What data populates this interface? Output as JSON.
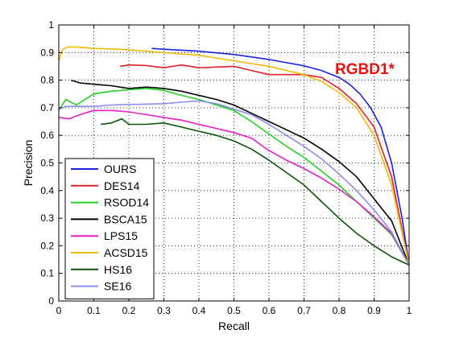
{
  "chart_data": {
    "type": "line",
    "title": "",
    "annotation": "RGBD1*",
    "xlabel": "Recall",
    "ylabel": "Precision",
    "xlim": [
      0,
      1
    ],
    "ylim": [
      0,
      1
    ],
    "xticks": [
      "0",
      "0.1",
      "0.2",
      "0.3",
      "0.4",
      "0.5",
      "0.6",
      "0.7",
      "0.8",
      "0.9",
      "1"
    ],
    "yticks": [
      "0",
      "0.1",
      "0.2",
      "0.3",
      "0.4",
      "0.5",
      "0.6",
      "0.7",
      "0.8",
      "0.9",
      "1"
    ],
    "grid": true,
    "grid_style": "dotted",
    "legend_position": "bottom-left",
    "colors": {
      "axis": "#000000",
      "grid": "#000000",
      "annotation": "#e8120c",
      "background": "#ffffff"
    },
    "series": [
      {
        "name": "OURS",
        "color": "#1a22dc",
        "x": [
          0.265,
          0.3,
          0.4,
          0.5,
          0.6,
          0.7,
          0.75,
          0.8,
          0.83,
          0.86,
          0.89,
          0.92,
          0.95,
          0.98,
          1.0
        ],
        "y": [
          0.915,
          0.912,
          0.905,
          0.893,
          0.875,
          0.852,
          0.835,
          0.81,
          0.785,
          0.75,
          0.7,
          0.63,
          0.5,
          0.3,
          0.13
        ]
      },
      {
        "name": "DES14",
        "color": "#e0212b",
        "x": [
          0.175,
          0.2,
          0.25,
          0.3,
          0.35,
          0.4,
          0.5,
          0.55,
          0.6,
          0.7,
          0.75,
          0.8,
          0.85,
          0.9,
          0.95,
          1.0
        ],
        "y": [
          0.85,
          0.855,
          0.853,
          0.845,
          0.855,
          0.845,
          0.85,
          0.835,
          0.82,
          0.82,
          0.81,
          0.77,
          0.715,
          0.63,
          0.45,
          0.13
        ]
      },
      {
        "name": "RSOD14",
        "color": "#22d222",
        "x": [
          0.0,
          0.02,
          0.05,
          0.1,
          0.15,
          0.2,
          0.25,
          0.3,
          0.35,
          0.4,
          0.45,
          0.5,
          0.55,
          0.6,
          0.65,
          0.7,
          0.75,
          0.8,
          0.85,
          0.9,
          0.95,
          1.0
        ],
        "y": [
          0.69,
          0.73,
          0.71,
          0.75,
          0.76,
          0.765,
          0.77,
          0.763,
          0.745,
          0.73,
          0.71,
          0.69,
          0.65,
          0.605,
          0.56,
          0.52,
          0.47,
          0.42,
          0.36,
          0.3,
          0.24,
          0.13
        ]
      },
      {
        "name": "BSCA15",
        "color": "#000000",
        "x": [
          0.035,
          0.06,
          0.1,
          0.15,
          0.2,
          0.25,
          0.3,
          0.35,
          0.4,
          0.45,
          0.5,
          0.55,
          0.6,
          0.65,
          0.7,
          0.75,
          0.8,
          0.85,
          0.9,
          0.95,
          1.0
        ],
        "y": [
          0.8,
          0.79,
          0.785,
          0.78,
          0.77,
          0.775,
          0.77,
          0.76,
          0.745,
          0.73,
          0.71,
          0.68,
          0.65,
          0.62,
          0.59,
          0.55,
          0.505,
          0.45,
          0.37,
          0.29,
          0.13
        ]
      },
      {
        "name": "LPS15",
        "color": "#e61ec8",
        "x": [
          0.0,
          0.03,
          0.06,
          0.1,
          0.15,
          0.2,
          0.25,
          0.3,
          0.35,
          0.4,
          0.45,
          0.5,
          0.55,
          0.6,
          0.65,
          0.7,
          0.75,
          0.8,
          0.85,
          0.9,
          0.95,
          1.0
        ],
        "y": [
          0.665,
          0.66,
          0.675,
          0.69,
          0.69,
          0.685,
          0.675,
          0.665,
          0.655,
          0.64,
          0.625,
          0.61,
          0.59,
          0.545,
          0.51,
          0.48,
          0.445,
          0.405,
          0.36,
          0.305,
          0.245,
          0.13
        ]
      },
      {
        "name": "ACSD15",
        "color": "#f2b90a",
        "x": [
          0.0,
          0.01,
          0.025,
          0.05,
          0.1,
          0.15,
          0.2,
          0.25,
          0.3,
          0.35,
          0.4,
          0.45,
          0.5,
          0.55,
          0.6,
          0.65,
          0.7,
          0.75,
          0.8,
          0.85,
          0.9,
          0.95,
          1.0
        ],
        "y": [
          0.87,
          0.91,
          0.92,
          0.92,
          0.915,
          0.913,
          0.91,
          0.905,
          0.9,
          0.895,
          0.89,
          0.88,
          0.87,
          0.86,
          0.85,
          0.835,
          0.82,
          0.795,
          0.755,
          0.7,
          0.6,
          0.42,
          0.13
        ]
      },
      {
        "name": "HS16",
        "color": "#0a540a",
        "x": [
          0.12,
          0.15,
          0.18,
          0.2,
          0.25,
          0.3,
          0.35,
          0.4,
          0.45,
          0.5,
          0.55,
          0.6,
          0.65,
          0.7,
          0.75,
          0.8,
          0.85,
          0.9,
          0.95,
          1.0
        ],
        "y": [
          0.64,
          0.645,
          0.66,
          0.64,
          0.64,
          0.645,
          0.63,
          0.615,
          0.6,
          0.58,
          0.55,
          0.51,
          0.465,
          0.42,
          0.36,
          0.3,
          0.245,
          0.2,
          0.16,
          0.13
        ]
      },
      {
        "name": "SE16",
        "color": "#8c8cf0",
        "x": [
          0.0,
          0.02,
          0.05,
          0.1,
          0.15,
          0.2,
          0.25,
          0.3,
          0.35,
          0.4,
          0.45,
          0.5,
          0.55,
          0.6,
          0.65,
          0.7,
          0.75,
          0.8,
          0.85,
          0.9,
          0.95,
          1.0
        ],
        "y": [
          0.695,
          0.705,
          0.705,
          0.705,
          0.71,
          0.712,
          0.713,
          0.715,
          0.72,
          0.725,
          0.715,
          0.695,
          0.675,
          0.64,
          0.6,
          0.56,
          0.515,
          0.46,
          0.4,
          0.33,
          0.25,
          0.13
        ]
      }
    ]
  }
}
